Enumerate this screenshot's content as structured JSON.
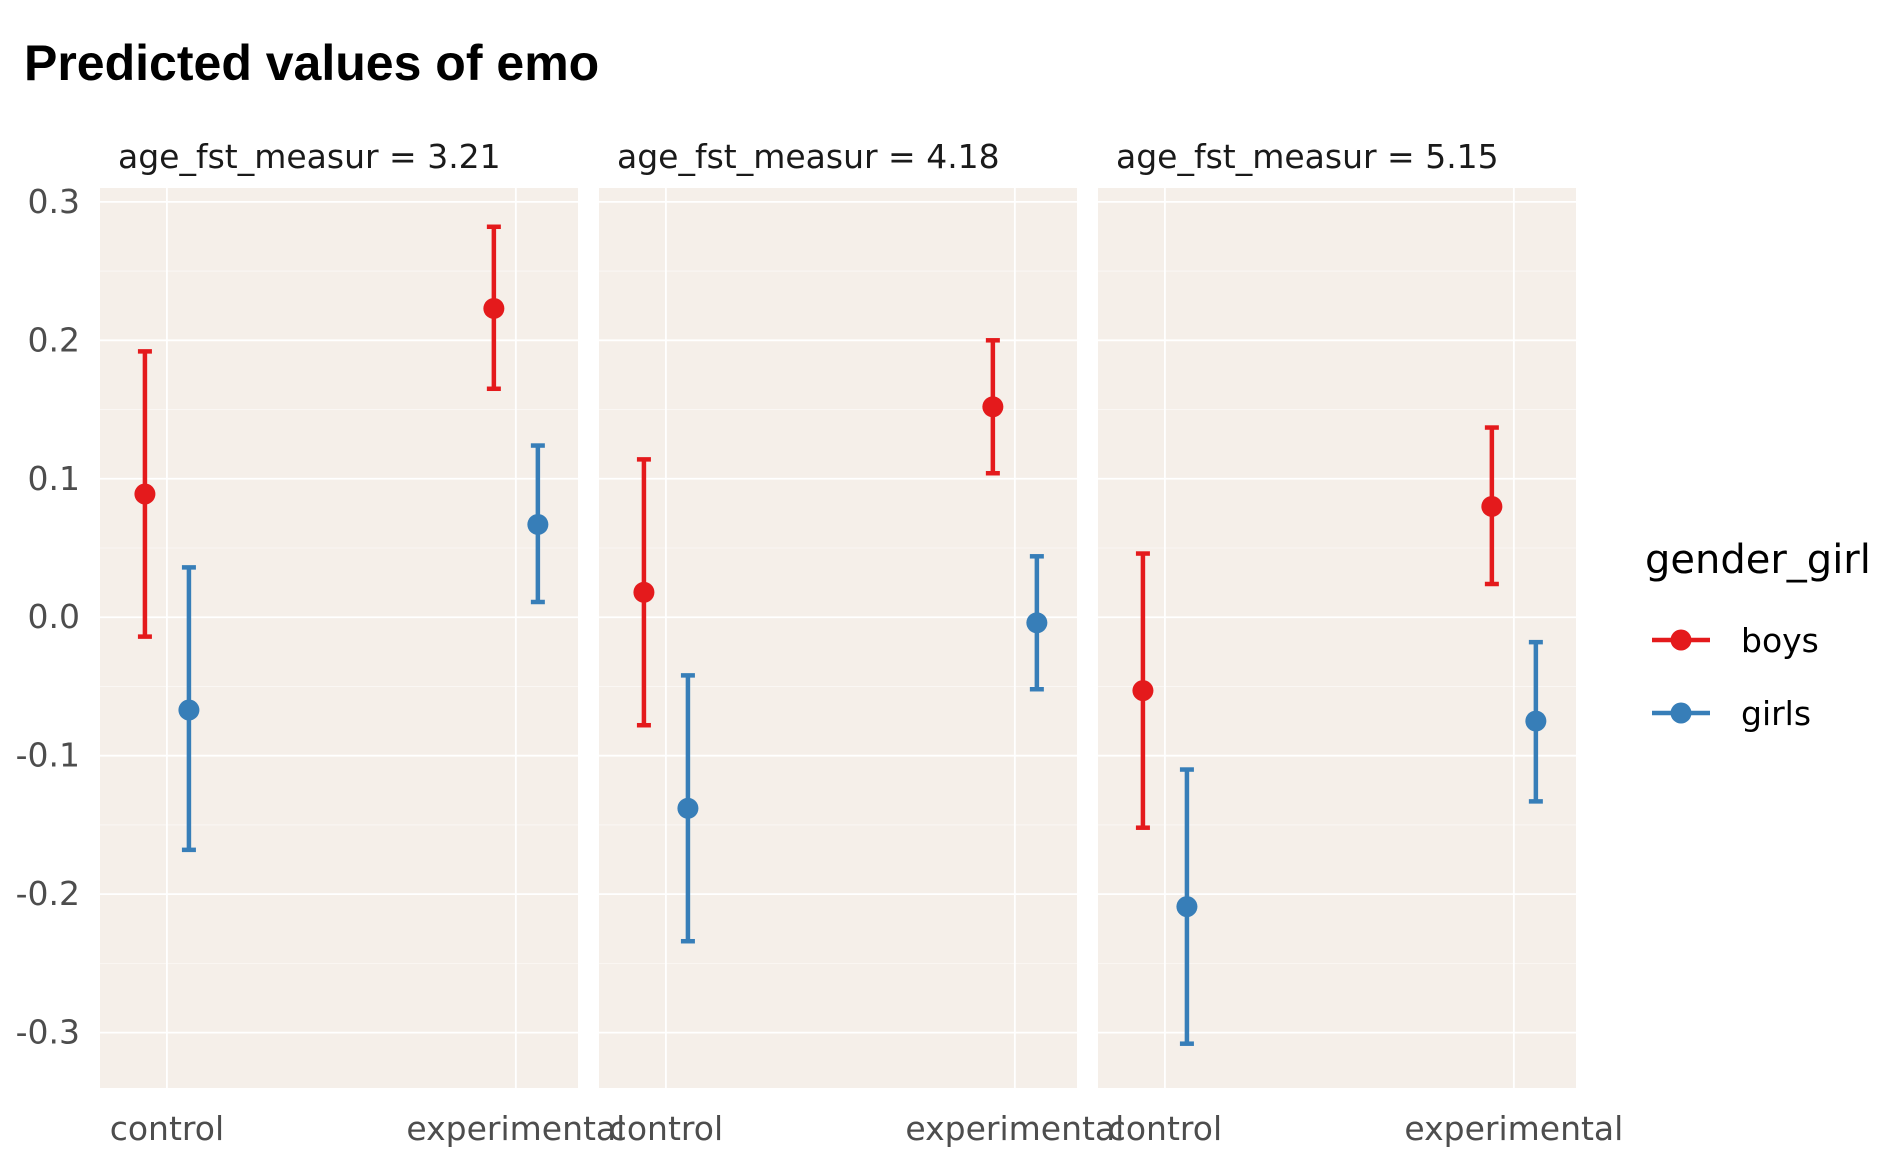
{
  "chart_data": {
    "type": "scatter",
    "title": "Predicted values of emo",
    "xlabel": "",
    "ylabel": "",
    "categories": [
      "control",
      "experimental"
    ],
    "ylim": [
      -0.34,
      0.31
    ],
    "y_ticks": [
      0.3,
      0.2,
      0.1,
      0.0,
      -0.1,
      -0.2,
      -0.3
    ],
    "y_tick_labels": [
      "0.3",
      "0.2",
      "0.1",
      "0.0",
      "-0.1",
      "-0.2",
      "-0.3"
    ],
    "grid": true,
    "legend": {
      "title": "gender_girl",
      "position": "right",
      "entries": [
        "boys",
        "girls"
      ]
    },
    "colors": {
      "boys": "#E41A1C",
      "girls": "#377EB8",
      "panel_bg": "#F5EFE9",
      "grid": "#FFFFFF"
    },
    "panels": [
      {
        "label": "age_fst_measur = 3.21",
        "series": [
          {
            "name": "boys",
            "values": [
              0.089,
              0.223
            ],
            "lower": [
              -0.014,
              0.165
            ],
            "upper": [
              0.192,
              0.282
            ]
          },
          {
            "name": "girls",
            "values": [
              -0.067,
              0.067
            ],
            "lower": [
              -0.168,
              0.011
            ],
            "upper": [
              0.036,
              0.124
            ]
          }
        ]
      },
      {
        "label": "age_fst_measur = 4.18",
        "series": [
          {
            "name": "boys",
            "values": [
              0.018,
              0.152
            ],
            "lower": [
              -0.078,
              0.104
            ],
            "upper": [
              0.114,
              0.2
            ]
          },
          {
            "name": "girls",
            "values": [
              -0.138,
              -0.004
            ],
            "lower": [
              -0.234,
              -0.052
            ],
            "upper": [
              -0.042,
              0.044
            ]
          }
        ]
      },
      {
        "label": "age_fst_measur = 5.15",
        "series": [
          {
            "name": "boys",
            "values": [
              -0.053,
              0.08
            ],
            "lower": [
              -0.152,
              0.024
            ],
            "upper": [
              0.046,
              0.137
            ]
          },
          {
            "name": "girls",
            "values": [
              -0.209,
              -0.075
            ],
            "lower": [
              -0.308,
              -0.133
            ],
            "upper": [
              -0.11,
              -0.018
            ]
          }
        ]
      }
    ]
  }
}
